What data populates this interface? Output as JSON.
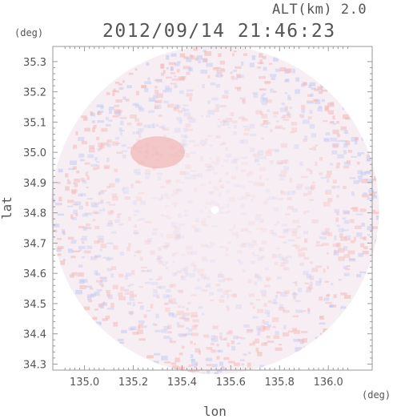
{
  "header": {
    "altitude_label": "ALT(km) 2.0",
    "timestamp": "2012/09/14 21:46:23"
  },
  "units": {
    "y": "(deg)",
    "x": "(deg)"
  },
  "chart_data": {
    "type": "heatmap",
    "title": "2012/09/14 21:46:23",
    "xlabel": "lon",
    "ylabel": "lat",
    "x_tick_labels": [
      "135.0",
      "135.2",
      "135.4",
      "135.6",
      "135.8",
      "136.0"
    ],
    "y_tick_labels": [
      "35.3",
      "35.2",
      "35.1",
      "35.0",
      "34.9",
      "34.8",
      "34.7",
      "34.6",
      "34.5",
      "34.4",
      "34.3"
    ],
    "x_ticks": [
      135.0,
      135.2,
      135.4,
      135.6,
      135.8,
      136.0
    ],
    "y_ticks": [
      35.3,
      35.2,
      35.1,
      35.0,
      34.9,
      34.8,
      34.7,
      34.6,
      34.5,
      34.4,
      34.3
    ],
    "xlim": [
      134.87,
      136.18
    ],
    "ylim": [
      34.28,
      35.35
    ],
    "radar_center": [
      135.535,
      34.81
    ],
    "radar_radius_deg_lat": 0.545,
    "radar_radius_deg_lon": 0.67,
    "colors": {
      "positive": "#f2b8b8",
      "negative": "#c5cbf2",
      "neutral": "#f7eef3",
      "axis": "#999999"
    },
    "notable_regions": [
      {
        "lon": 135.3,
        "lat": 35.0,
        "sign": "positive"
      }
    ]
  }
}
